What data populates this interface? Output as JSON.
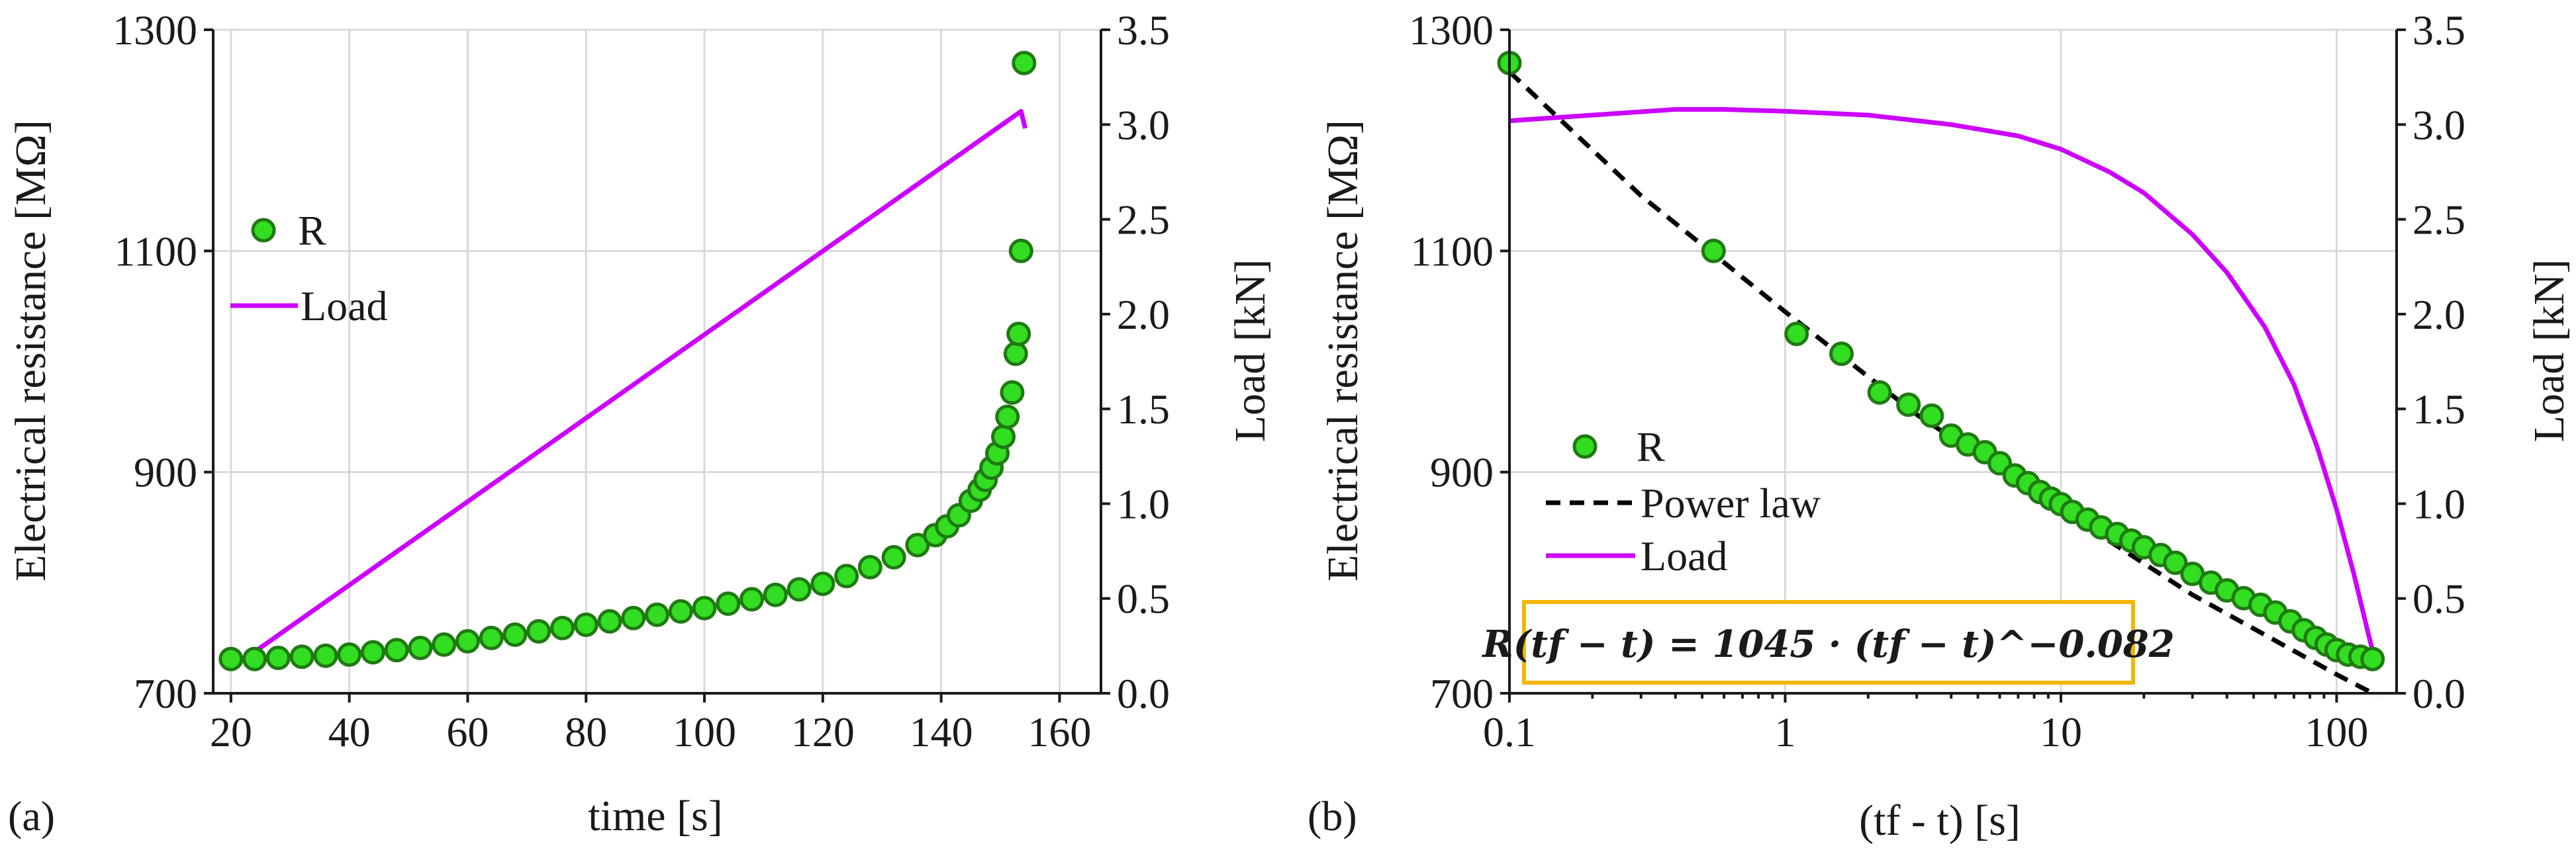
{
  "chart_data": [
    {
      "type": "scatter+line",
      "panel_label": "(a)",
      "xlabel": "time [s]",
      "ylabel_left": "Electrical resistance [MΩ]",
      "ylabel_right": "Load [kN]",
      "xlim": [
        17,
        167
      ],
      "ylim_left": [
        700,
        1300
      ],
      "ylim_right": [
        0,
        3.5
      ],
      "x_ticks": [
        20,
        40,
        60,
        80,
        100,
        120,
        140,
        160
      ],
      "x_tick_labels": [
        "20",
        "40",
        "60",
        "80",
        "100",
        "120",
        "140",
        "160"
      ],
      "y_left_ticks": [
        700,
        900,
        1100,
        1300
      ],
      "y_left_tick_labels": [
        "700",
        "900",
        "1100",
        "1300"
      ],
      "y_right_ticks": [
        0,
        0.5,
        1.0,
        1.5,
        2.0,
        2.5,
        3.0,
        3.5
      ],
      "y_right_tick_labels": [
        "0.0",
        "0.5",
        "1.0",
        "1.5",
        "2.0",
        "2.5",
        "3.0",
        "3.5"
      ],
      "grid": true,
      "legend_position": "center-left",
      "series": [
        {
          "name": "R",
          "kind": "scatter",
          "axis": "left",
          "x": [
            20,
            24,
            28,
            32,
            36,
            40,
            44,
            48,
            52,
            56,
            60,
            64,
            68,
            72,
            76,
            80,
            84,
            88,
            92,
            96,
            100,
            104,
            108,
            112,
            116,
            120,
            124,
            128,
            132,
            136,
            139,
            141,
            143,
            145,
            146.5,
            147.5,
            148.5,
            149.5,
            150.5,
            151.2,
            152,
            152.6,
            153.1,
            153.5,
            154
          ],
          "y": [
            731,
            731,
            732,
            733,
            734,
            735,
            737,
            739,
            741,
            744,
            747,
            750,
            753,
            756,
            759,
            762,
            765,
            768,
            771,
            774,
            777,
            781,
            785,
            789,
            794,
            799,
            806,
            814,
            823,
            834,
            843,
            851,
            861,
            874,
            884,
            893,
            904,
            917,
            932,
            950,
            972,
            1007,
            1025,
            1100,
            1270
          ]
        },
        {
          "name": "Load",
          "kind": "line",
          "axis": "right",
          "x": [
            20,
            153.5,
            154.2
          ],
          "y": [
            0.13,
            3.07,
            2.98
          ]
        }
      ]
    },
    {
      "type": "scatter+line",
      "panel_label": "(b)",
      "xlabel": "(tf - t) [s]",
      "x_scale": "log",
      "ylabel_left": "Electrical resistance [MΩ]",
      "ylabel_right": "Load [kN]",
      "xlim": [
        0.1,
        165
      ],
      "ylim_left": [
        700,
        1300
      ],
      "ylim_right": [
        0,
        3.5
      ],
      "x_ticks": [
        0.1,
        1,
        10,
        100
      ],
      "x_tick_labels": [
        "0.1",
        "1",
        "10",
        "100"
      ],
      "y_left_ticks": [
        700,
        900,
        1100,
        1300
      ],
      "y_left_tick_labels": [
        "700",
        "900",
        "1100",
        "1300"
      ],
      "y_right_ticks": [
        0,
        0.5,
        1.0,
        1.5,
        2.0,
        2.5,
        3.0,
        3.5
      ],
      "y_right_tick_labels": [
        "0.0",
        "0.5",
        "1.0",
        "1.5",
        "2.0",
        "2.5",
        "3.0",
        "3.5"
      ],
      "grid": true,
      "legend_position": "lower-left",
      "annotation": "R(tf − t) = 1045 · (tf − t)^−0.082",
      "series": [
        {
          "name": "R",
          "kind": "scatter",
          "axis": "left",
          "x": [
            0.1,
            0.55,
            1.1,
            1.6,
            2.2,
            2.8,
            3.4,
            4.0,
            4.6,
            5.3,
            6.0,
            6.8,
            7.6,
            8.4,
            9.2,
            10,
            11,
            12.5,
            14,
            16,
            18,
            20,
            23,
            26,
            30,
            35,
            40,
            46,
            53,
            60,
            68,
            76,
            84,
            92,
            100,
            110,
            122,
            135
          ],
          "y": [
            1270,
            1100,
            1025,
            1007,
            972,
            961,
            951,
            933,
            925,
            918,
            908,
            897,
            890,
            882,
            876,
            871,
            864,
            857,
            850,
            844,
            838,
            832,
            825,
            818,
            808,
            800,
            793,
            786,
            780,
            773,
            765,
            757,
            750,
            744,
            739,
            735,
            733,
            731
          ]
        },
        {
          "name": "Power law",
          "kind": "dashed-line",
          "axis": "left",
          "x": [
            0.1,
            0.3,
            1,
            3,
            10,
            30,
            100,
            140
          ],
          "y": [
            1262,
            1150,
            1045,
            952,
            866,
            789,
            717,
            698
          ]
        },
        {
          "name": "Load",
          "kind": "line",
          "axis": "right",
          "x": [
            0.1,
            0.2,
            0.4,
            0.6,
            1,
            2,
            4,
            7,
            10,
            15,
            20,
            30,
            40,
            55,
            70,
            85,
            100,
            115,
            130,
            140
          ],
          "y": [
            3.02,
            3.05,
            3.08,
            3.08,
            3.07,
            3.05,
            3.0,
            2.94,
            2.87,
            2.75,
            2.64,
            2.42,
            2.22,
            1.93,
            1.63,
            1.3,
            0.97,
            0.64,
            0.32,
            0.13
          ]
        }
      ]
    }
  ]
}
